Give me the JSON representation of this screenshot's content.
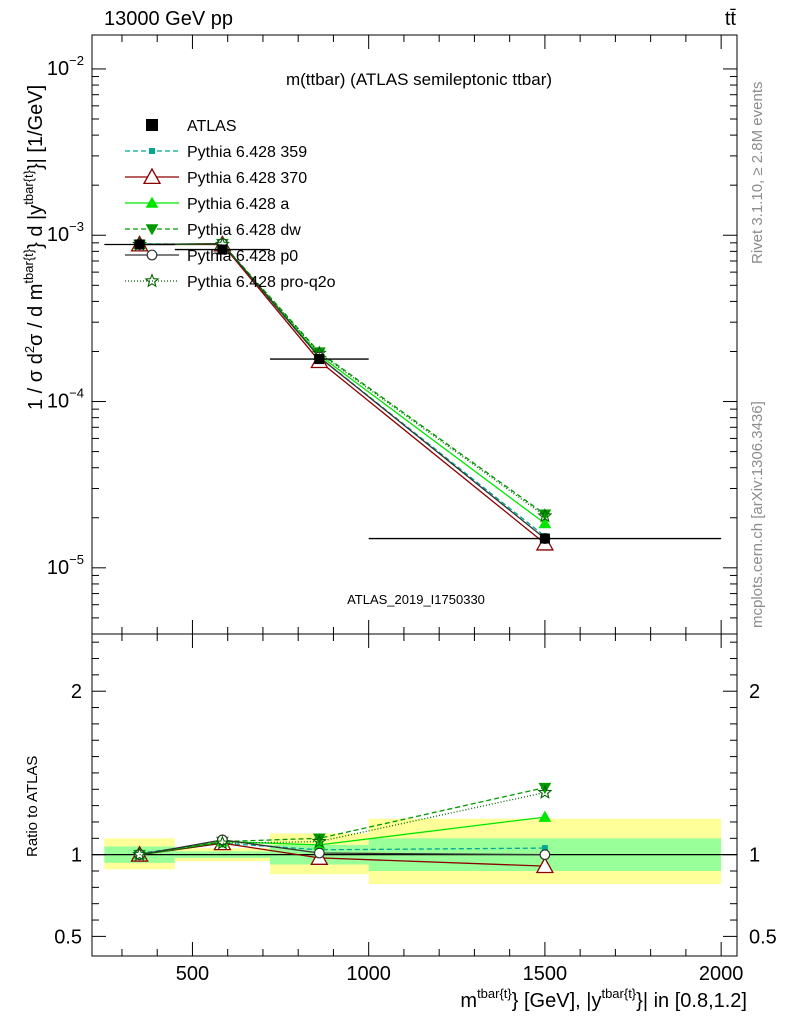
{
  "header": {
    "left": "13000 GeV pp",
    "right": "tt̄"
  },
  "side_text": {
    "rivet": "Rivet 3.1.10, ≥ 2.8M events",
    "mcplots": "mcplots.cern.ch [arXiv:1306.3436]"
  },
  "chart_data": [
    {
      "type": "line",
      "title": "m(ttbar) (ATLAS semileptonic ttbar)",
      "watermark": "ATLAS_2019_I1750330",
      "ylabel_parts": {
        "p1": "1 / σ d",
        "p2": "2",
        "p3": "σ / d m",
        "p4": "tbar{t}",
        "p5": "} d |y",
        "p6": "tbar{t}",
        "p7": "}| [1/GeV]"
      },
      "yscale": "log",
      "ylim": [
        4e-06,
        0.016
      ],
      "xlim": [
        215,
        2045
      ],
      "yticks": [
        {
          "value": 0.01,
          "base": "10",
          "exp": "−2"
        },
        {
          "value": 0.001,
          "base": "10",
          "exp": "−3"
        },
        {
          "value": 0.0001,
          "base": "10",
          "exp": "−4"
        },
        {
          "value": 1e-05,
          "base": "10",
          "exp": "−5"
        }
      ],
      "legend_position": "top-left",
      "data": {
        "name": "ATLAS",
        "x": [
          350,
          585,
          860,
          1500
        ],
        "y": [
          0.00088,
          0.00082,
          0.00018,
          1.5e-05
        ],
        "x_edges": [
          [
            250,
            450
          ],
          [
            450,
            720
          ],
          [
            720,
            1000
          ],
          [
            1000,
            2000
          ]
        ]
      },
      "series": [
        {
          "name": "Pythia 6.428 359",
          "color": "#00a88f",
          "dash": "5,3",
          "marker": "square-small",
          "x": [
            350,
            585,
            860,
            1500
          ],
          "y": [
            0.00089,
            0.00088,
            0.000185,
            1.55e-05
          ]
        },
        {
          "name": "Pythia 6.428 370",
          "color": "#8b0000",
          "dash": "",
          "marker": "triangle-open",
          "x": [
            350,
            585,
            860,
            1500
          ],
          "y": [
            0.00088,
            0.00088,
            0.000175,
            1.4e-05
          ]
        },
        {
          "name": "Pythia 6.428 a",
          "color": "#00e600",
          "dash": "",
          "marker": "triangle-filled",
          "x": [
            350,
            585,
            860,
            1500
          ],
          "y": [
            0.00088,
            0.00089,
            0.00019,
            1.85e-05
          ]
        },
        {
          "name": "Pythia 6.428 dw",
          "color": "#009900",
          "dash": "5,3",
          "marker": "triangle-down",
          "x": [
            350,
            585,
            860,
            1500
          ],
          "y": [
            0.00088,
            0.00089,
            0.000198,
            2.1e-05
          ]
        },
        {
          "name": "Pythia 6.428 p0",
          "color": "#333333",
          "dash": "",
          "marker": "circle-open",
          "x": [
            350,
            585,
            860,
            1500
          ],
          "y": [
            0.00088,
            0.00089,
            0.000185,
            1.5e-05
          ]
        },
        {
          "name": "Pythia 6.428 pro-q2o",
          "color": "#006400",
          "dash": "1,2",
          "marker": "star",
          "x": [
            350,
            585,
            860,
            1500
          ],
          "y": [
            0.00088,
            0.00088,
            0.000195,
            2.05e-05
          ]
        }
      ]
    },
    {
      "type": "line",
      "ylabel": "Ratio to ATLAS",
      "xlabel_parts": {
        "p1": "m",
        "p2": "tbar{t}",
        "p3": "} [GeV], |y",
        "p4": "tbar{t}",
        "p5": "}| in [0.8,1.2]"
      },
      "ylim": [
        0.38,
        2.35
      ],
      "xlim": [
        215,
        2045
      ],
      "yticks": [
        0.5,
        1,
        2
      ],
      "xticks": [
        500,
        1000,
        1500,
        2000
      ],
      "bands": [
        {
          "x": [
            250,
            450
          ],
          "inner": [
            0.95,
            1.05
          ],
          "outer": [
            0.91,
            1.1
          ]
        },
        {
          "x": [
            450,
            720
          ],
          "inner": [
            0.98,
            1.02
          ],
          "outer": [
            0.96,
            1.04
          ]
        },
        {
          "x": [
            720,
            1000
          ],
          "inner": [
            0.94,
            1.06
          ],
          "outer": [
            0.88,
            1.13
          ]
        },
        {
          "x": [
            1000,
            2000
          ],
          "inner": [
            0.9,
            1.1
          ],
          "outer": [
            0.82,
            1.22
          ]
        }
      ],
      "series": [
        {
          "name": "Pythia 6.428 359",
          "x": [
            350,
            585,
            860,
            1500
          ],
          "y": [
            1.01,
            1.07,
            1.03,
            1.04
          ]
        },
        {
          "name": "Pythia 6.428 370",
          "x": [
            350,
            585,
            860,
            1500
          ],
          "y": [
            1.0,
            1.07,
            0.98,
            0.93
          ]
        },
        {
          "name": "Pythia 6.428 a",
          "x": [
            350,
            585,
            860,
            1500
          ],
          "y": [
            1.0,
            1.08,
            1.06,
            1.23
          ]
        },
        {
          "name": "Pythia 6.428 dw",
          "x": [
            350,
            585,
            860,
            1500
          ],
          "y": [
            1.0,
            1.08,
            1.1,
            1.41
          ]
        },
        {
          "name": "Pythia 6.428 p0",
          "x": [
            350,
            585,
            860,
            1500
          ],
          "y": [
            1.0,
            1.09,
            1.01,
            1.0
          ]
        },
        {
          "name": "Pythia 6.428 pro-q2o",
          "x": [
            350,
            585,
            860,
            1500
          ],
          "y": [
            1.0,
            1.07,
            1.08,
            1.38
          ]
        }
      ]
    }
  ]
}
